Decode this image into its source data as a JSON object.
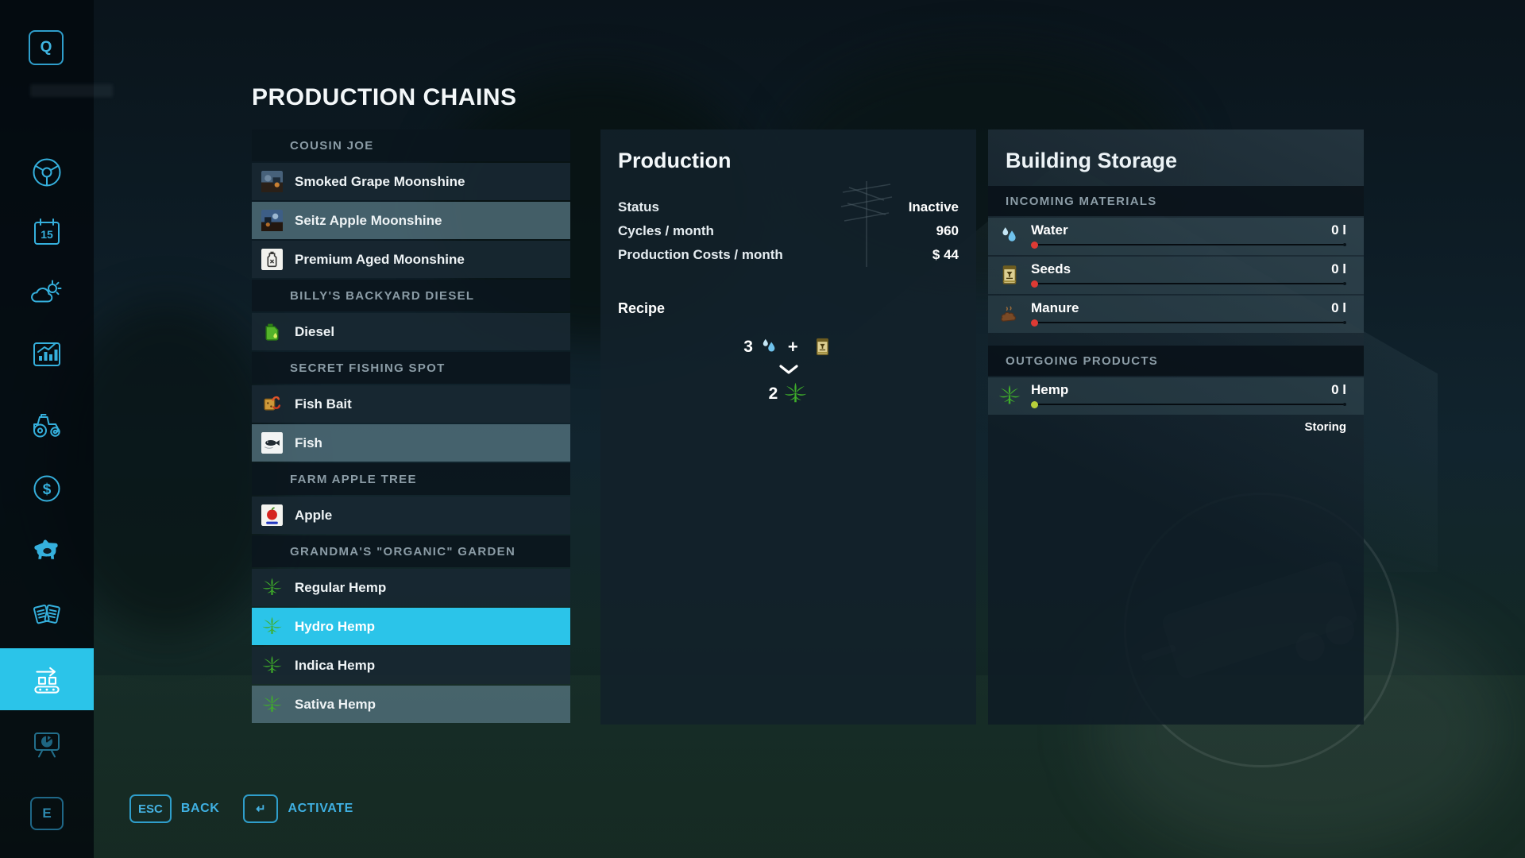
{
  "page": {
    "title": "PRODUCTION CHAINS"
  },
  "sidebar": {
    "top_key_label": "Q",
    "bottom_key_label": "E",
    "calendar_day": "15",
    "icons": [
      "steering-wheel-icon",
      "calendar-icon",
      "weather-icon",
      "statistics-icon",
      "tractor-icon",
      "finances-icon",
      "animals-icon",
      "contracts-icon",
      "production-chains-icon",
      "presentation-icon"
    ],
    "active_icon": "production-chains-icon"
  },
  "chains": {
    "sections": [
      {
        "header": "COUSIN JOE",
        "items": [
          {
            "label": "Smoked Grape Moonshine",
            "icon": "moonshine-photo-icon-1",
            "state": "normal"
          },
          {
            "label": "Seitz Apple Moonshine",
            "icon": "moonshine-photo-icon-2",
            "state": "light"
          },
          {
            "label": "Premium Aged Moonshine",
            "icon": "moonshine-jug-icon",
            "state": "normal"
          }
        ]
      },
      {
        "header": "BILLY'S BACKYARD DIESEL",
        "items": [
          {
            "label": "Diesel",
            "icon": "diesel-icon",
            "state": "normal"
          }
        ]
      },
      {
        "header": "SECRET FISHING SPOT",
        "items": [
          {
            "label": "Fish Bait",
            "icon": "fish-bait-icon",
            "state": "normal"
          },
          {
            "label": "Fish",
            "icon": "fish-icon",
            "state": "light"
          }
        ]
      },
      {
        "header": "FARM APPLE TREE",
        "items": [
          {
            "label": "Apple",
            "icon": "apple-icon",
            "state": "normal"
          }
        ]
      },
      {
        "header": "GRANDMA'S \"ORGANIC\" GARDEN",
        "items": [
          {
            "label": "Regular Hemp",
            "icon": "hemp-leaf-icon",
            "state": "normal"
          },
          {
            "label": "Hydro Hemp",
            "icon": "hemp-leaf-icon",
            "state": "selected"
          },
          {
            "label": "Indica Hemp",
            "icon": "hemp-leaf-icon",
            "state": "normal"
          },
          {
            "label": "Sativa Hemp",
            "icon": "hemp-leaf-icon",
            "state": "light"
          }
        ]
      }
    ]
  },
  "production": {
    "title": "Production",
    "rows": [
      {
        "label": "Status",
        "value": "Inactive"
      },
      {
        "label": "Cycles / month",
        "value": "960"
      },
      {
        "label": "Production Costs / month",
        "value": "$ 44"
      }
    ],
    "recipe": {
      "label": "Recipe",
      "plus": "+",
      "inputs": [
        {
          "qty": "3",
          "icon": "water-icon"
        },
        {
          "qty": "",
          "icon": "seed-bag-icon"
        }
      ],
      "output": {
        "qty": "2",
        "icon": "hemp-leaf-icon"
      }
    }
  },
  "storage": {
    "title": "Building Storage",
    "incoming_label": "INCOMING MATERIALS",
    "outgoing_label": "OUTGOING PRODUCTS",
    "incoming": [
      {
        "name": "Water",
        "amount": "0 l",
        "icon": "water-icon",
        "marker_color": "#de3a34"
      },
      {
        "name": "Seeds",
        "amount": "0 l",
        "icon": "seed-bag-icon",
        "marker_color": "#de3a34"
      },
      {
        "name": "Manure",
        "amount": "0 l",
        "icon": "manure-icon",
        "marker_color": "#de3a34"
      }
    ],
    "outgoing": [
      {
        "name": "Hemp",
        "amount": "0 l",
        "icon": "hemp-leaf-icon",
        "marker_color": "#b8cf3a",
        "status": "Storing"
      }
    ]
  },
  "footer": {
    "back_key": "ESC",
    "back_label": "BACK",
    "activate_key": "↵",
    "activate_label": "ACTIVATE"
  },
  "colors": {
    "accent": "#2bc4e9",
    "sidebar_icon": "#35b0dd",
    "danger": "#de3a34",
    "ok": "#b8cf3a"
  }
}
